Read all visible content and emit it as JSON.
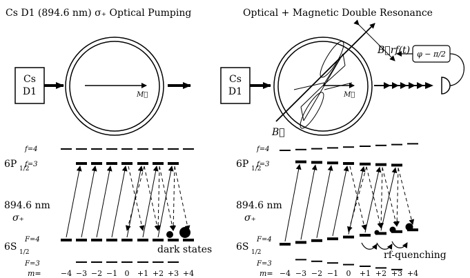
{
  "left_panel": {
    "title": "Cs D1 (894.6 nm) σ₊ Optical Pumping",
    "source_line1": "Cs",
    "source_line2": "D1",
    "vector_label": "M⃗"
  },
  "right_panel": {
    "title": "Optical + Magnetic Double Resonance",
    "source_line1": "Cs",
    "source_line2": "D1",
    "vector_label": "M⃗",
    "rf_field_label": "B⃗rf(t)",
    "phase_label": "φ − π/2",
    "static_field_label": "B⃗"
  },
  "levels": {
    "excited_state": "6P",
    "excited_sub": "1/2",
    "ground_state": "6S",
    "ground_sub": "1/2",
    "excited_f_upper": "f=4",
    "excited_f_lower": "f=3",
    "ground_f_upper": "F=4",
    "ground_f_lower": "F=3",
    "wavelength": "894.6 nm",
    "polarization": "σ₊",
    "m_prefix": "m=",
    "m_values": [
      "−4",
      "−3",
      "−2",
      "−1",
      "0",
      "+1",
      "+2",
      "+3",
      "+4"
    ]
  },
  "annotations": {
    "dark_states": "dark states",
    "rf_quenching": "rf-quenching"
  },
  "colors": {
    "ink": "#000000",
    "background": "#ffffff"
  }
}
